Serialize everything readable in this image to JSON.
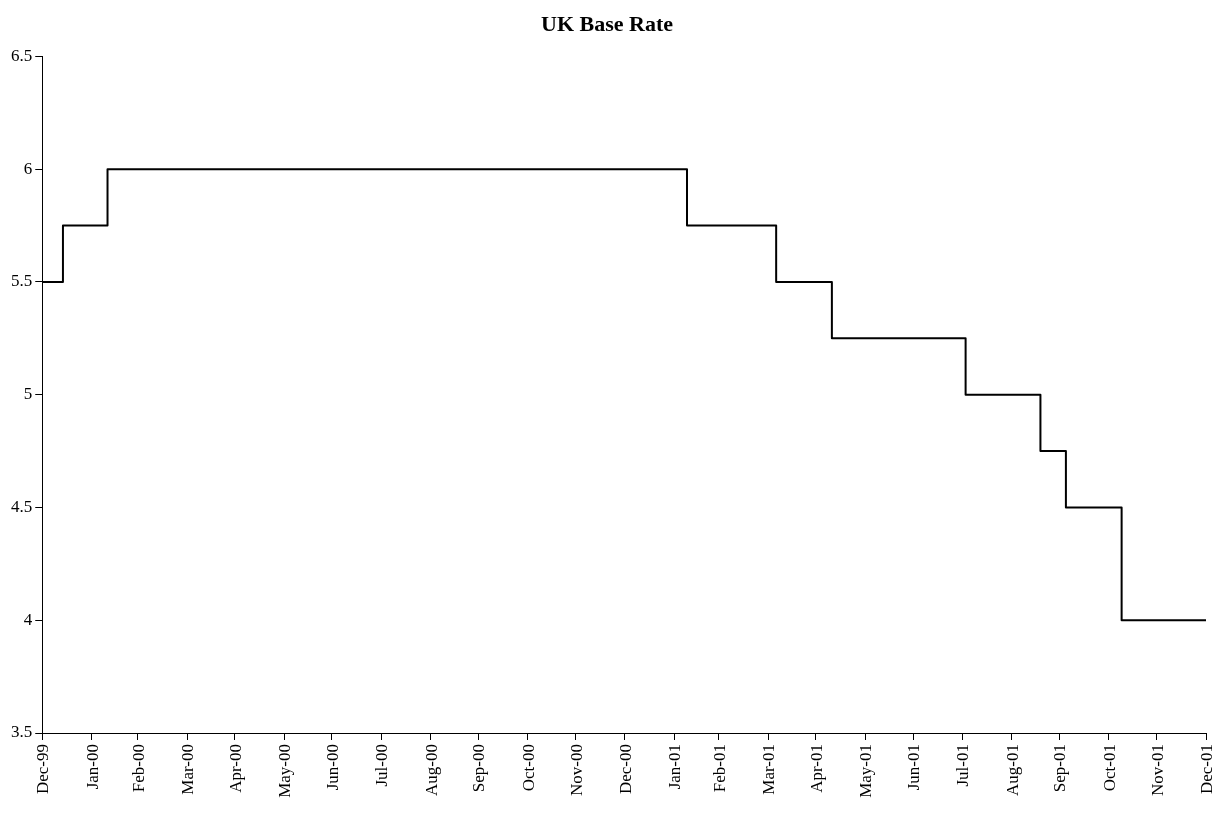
{
  "chart_data": {
    "type": "step",
    "title": "UK Base Rate",
    "x": [
      "1999-12-31",
      "2000-01-13",
      "2000-02-10",
      "2001-02-08",
      "2001-04-05",
      "2001-05-10",
      "2001-08-02",
      "2001-09-18",
      "2001-10-04",
      "2001-11-08",
      "2001-12-31"
    ],
    "series": [
      {
        "color": "#000000",
        "values": [
          5.5,
          5.75,
          6,
          5.75,
          5.5,
          5.25,
          5,
          4.75,
          4.5,
          4,
          4
        ]
      }
    ],
    "xlim": [
      "1999-12-31",
      "2001-12-31"
    ],
    "xticks": [
      {
        "value": "1999-12-31",
        "label": "Dec-99"
      },
      {
        "value": "2000-01-31",
        "label": "Jan-00"
      },
      {
        "value": "2000-02-29",
        "label": "Feb-00"
      },
      {
        "value": "2000-03-31",
        "label": "Mar-00"
      },
      {
        "value": "2000-04-30",
        "label": "Apr-00"
      },
      {
        "value": "2000-05-31",
        "label": "May-00"
      },
      {
        "value": "2000-06-30",
        "label": "Jun-00"
      },
      {
        "value": "2000-07-31",
        "label": "Jul-00"
      },
      {
        "value": "2000-08-31",
        "label": "Aug-00"
      },
      {
        "value": "2000-09-30",
        "label": "Sep-00"
      },
      {
        "value": "2000-10-31",
        "label": "Oct-00"
      },
      {
        "value": "2000-11-30",
        "label": "Nov-00"
      },
      {
        "value": "2000-12-31",
        "label": "Dec-00"
      },
      {
        "value": "2001-01-31",
        "label": "Jan-01"
      },
      {
        "value": "2001-02-28",
        "label": "Feb-01"
      },
      {
        "value": "2001-03-31",
        "label": "Mar-01"
      },
      {
        "value": "2001-04-30",
        "label": "Apr-01"
      },
      {
        "value": "2001-05-31",
        "label": "May-01"
      },
      {
        "value": "2001-06-30",
        "label": "Jun-01"
      },
      {
        "value": "2001-07-31",
        "label": "Jul-01"
      },
      {
        "value": "2001-08-31",
        "label": "Aug-01"
      },
      {
        "value": "2001-09-30",
        "label": "Sep-01"
      },
      {
        "value": "2001-10-31",
        "label": "Oct-01"
      },
      {
        "value": "2001-11-30",
        "label": "Nov-01"
      },
      {
        "value": "2001-12-31",
        "label": "Dec-01"
      }
    ],
    "ylim": [
      3.5,
      6.5
    ],
    "yticks": [
      3.5,
      4,
      4.5,
      5,
      5.5,
      6,
      6.5
    ],
    "grid": false,
    "legend": false,
    "marker": "none",
    "line_style": "solid"
  }
}
